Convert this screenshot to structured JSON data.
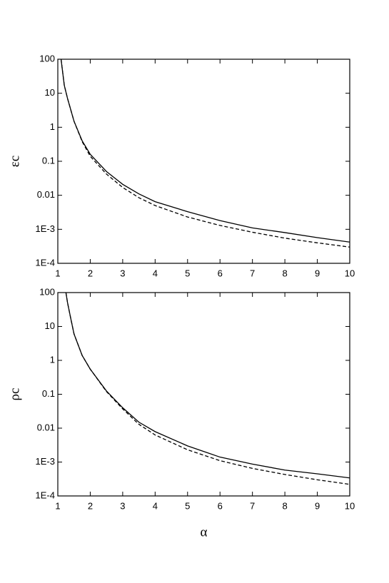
{
  "chart_data": [
    {
      "type": "line",
      "ylabel": "εc",
      "log_y": true,
      "x": [
        1.1,
        1.2,
        1.3,
        1.5,
        1.75,
        2,
        2.5,
        3,
        3.5,
        4,
        5,
        6,
        7,
        8,
        9,
        10
      ],
      "series": [
        {
          "color": "#000000",
          "dash": false,
          "values": [
            100,
            17,
            7,
            1.5,
            0.4,
            0.16,
            0.05,
            0.021,
            0.011,
            0.0065,
            0.0033,
            0.0018,
            0.0011,
            0.0008,
            0.00057,
            0.00042
          ]
        },
        {
          "color": "#000000",
          "dash": true,
          "values": [
            100,
            17,
            7,
            1.5,
            0.38,
            0.14,
            0.042,
            0.017,
            0.0085,
            0.005,
            0.0023,
            0.0013,
            0.00082,
            0.00055,
            0.0004,
            0.0003
          ]
        }
      ],
      "xlim": [
        1,
        10
      ],
      "xticks": [
        1,
        2,
        3,
        4,
        5,
        6,
        7,
        8,
        9,
        10
      ],
      "ylim": [
        0.0001,
        100
      ],
      "yticks": [
        {
          "value": 0.0001,
          "label": "1E-4"
        },
        {
          "value": 0.001,
          "label": "1E-3"
        },
        0.01,
        0.1,
        1,
        10,
        100
      ]
    },
    {
      "type": "line",
      "ylabel": "ρc",
      "xlabel": "α",
      "log_y": true,
      "x": [
        1.25,
        1.3,
        1.4,
        1.5,
        1.75,
        2,
        2.5,
        3,
        3.5,
        4,
        5,
        6,
        7,
        8,
        9,
        10
      ],
      "series": [
        {
          "color": "#000000",
          "dash": false,
          "values": [
            100,
            50,
            17,
            6,
            1.4,
            0.55,
            0.125,
            0.04,
            0.015,
            0.0079,
            0.003,
            0.0014,
            0.00087,
            0.00058,
            0.00045,
            0.00034
          ]
        },
        {
          "color": "#000000",
          "dash": true,
          "values": [
            100,
            50,
            17,
            6,
            1.4,
            0.55,
            0.12,
            0.037,
            0.013,
            0.0063,
            0.0023,
            0.0011,
            0.00065,
            0.00043,
            0.0003,
            0.00022
          ]
        }
      ],
      "xlim": [
        1,
        10
      ],
      "xticks": [
        1,
        2,
        3,
        4,
        5,
        6,
        7,
        8,
        9,
        10
      ],
      "ylim": [
        0.0001,
        100
      ],
      "yticks": [
        {
          "value": 0.0001,
          "label": "1E-4"
        },
        {
          "value": 0.001,
          "label": "1E-3"
        },
        0.01,
        0.1,
        1,
        10,
        100
      ]
    }
  ]
}
